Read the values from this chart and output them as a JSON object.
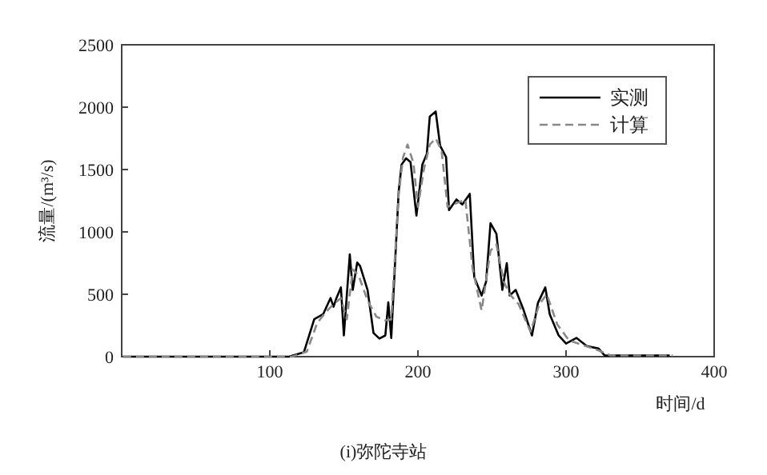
{
  "chart_data": {
    "type": "line",
    "title": "(i)弥陀寺站",
    "xlabel": "时间/d",
    "ylabel": "流量/(m³/s)",
    "xlim": [
      0,
      400
    ],
    "ylim": [
      0,
      2500
    ],
    "xticks": [
      100,
      200,
      300,
      400
    ],
    "yticks": [
      0,
      500,
      1000,
      1500,
      2000,
      2500
    ],
    "grid": false,
    "legend": "top right",
    "series": [
      {
        "name": "实测",
        "color": "#000000",
        "line_style": "solid",
        "x": [
          1,
          113,
          123,
          130,
          136,
          141,
          143,
          145,
          148,
          150,
          154,
          156,
          159,
          161,
          166,
          170,
          174,
          178,
          180,
          182,
          187,
          189,
          192,
          195,
          199,
          203,
          206,
          208,
          212,
          215,
          219,
          221,
          226,
          230,
          235,
          238,
          243,
          246,
          249,
          253,
          257,
          260,
          262,
          266,
          271,
          277,
          281,
          286,
          289,
          295,
          300,
          307,
          314,
          322,
          326,
          370
        ],
        "values": [
          0,
          0,
          35,
          300,
          340,
          470,
          400,
          470,
          555,
          170,
          820,
          535,
          755,
          725,
          535,
          190,
          145,
          170,
          435,
          150,
          1325,
          1540,
          1590,
          1560,
          1130,
          1540,
          1625,
          1925,
          1965,
          1690,
          1600,
          1175,
          1260,
          1220,
          1305,
          640,
          490,
          600,
          1070,
          985,
          535,
          750,
          490,
          535,
          385,
          170,
          430,
          555,
          340,
          170,
          105,
          150,
          85,
          65,
          10,
          10
        ]
      },
      {
        "name": "计算",
        "color": "#888888",
        "line_style": "dashed",
        "x": [
          1,
          115,
          125,
          132,
          138,
          143,
          148,
          152,
          156,
          160,
          166,
          172,
          178,
          182,
          187,
          190,
          193,
          197,
          200,
          204,
          208,
          212,
          216,
          220,
          226,
          232,
          237,
          243,
          249,
          253,
          258,
          262,
          268,
          276,
          282,
          287,
          294,
          302,
          312,
          322,
          330,
          372
        ],
        "values": [
          0,
          0,
          40,
          270,
          360,
          420,
          470,
          300,
          700,
          650,
          450,
          320,
          290,
          300,
          1300,
          1600,
          1700,
          1550,
          1200,
          1500,
          1700,
          1750,
          1650,
          1200,
          1230,
          1260,
          700,
          370,
          850,
          900,
          600,
          500,
          420,
          200,
          420,
          500,
          260,
          130,
          90,
          50,
          10,
          10
        ]
      }
    ]
  }
}
